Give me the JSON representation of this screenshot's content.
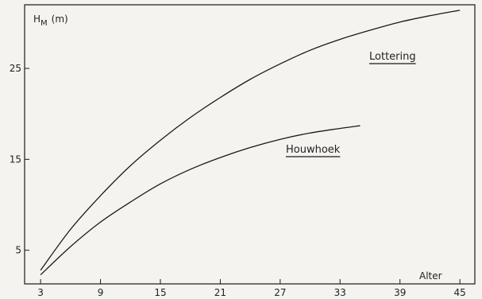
{
  "chart_data": {
    "type": "line",
    "title": "",
    "ylabel": "H_M (m)",
    "ylabel_parts": {
      "main": "H",
      "sub": "M",
      "unit": "(m)"
    },
    "xlabel": "Alter",
    "x_ticks": [
      3,
      9,
      15,
      21,
      27,
      33,
      39,
      45
    ],
    "y_ticks": [
      5,
      15,
      25
    ],
    "xlim": [
      1.4,
      46.5
    ],
    "ylim": [
      1.3,
      32.0
    ],
    "grid": false,
    "legend": "inline labels next to curves",
    "line_color": "#1a1a1a",
    "series": [
      {
        "name": "Lottering",
        "x": [
          3,
          6,
          9,
          12,
          15,
          18,
          21,
          24,
          27,
          30,
          33,
          36,
          39,
          42,
          45
        ],
        "y": [
          2.8,
          7.3,
          11.0,
          14.3,
          17.1,
          19.6,
          21.8,
          23.8,
          25.5,
          27.0,
          28.2,
          29.2,
          30.1,
          30.8,
          31.4
        ]
      },
      {
        "name": "Houwhoek",
        "x": [
          3,
          6,
          9,
          12,
          15,
          18,
          21,
          24,
          27,
          30,
          33,
          35
        ],
        "y": [
          2.3,
          5.4,
          8.1,
          10.3,
          12.3,
          13.9,
          15.2,
          16.3,
          17.2,
          17.9,
          18.4,
          18.7
        ]
      }
    ]
  }
}
